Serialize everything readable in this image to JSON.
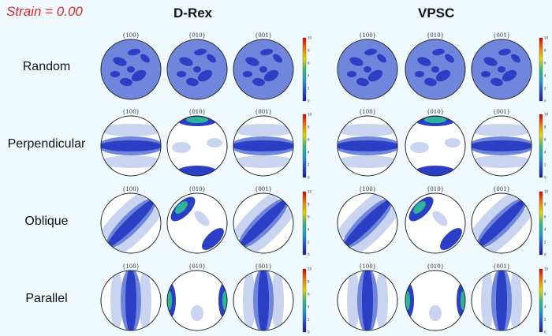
{
  "strain_label": "Strain = 0.00",
  "models": [
    "D-Rex",
    "VPSC"
  ],
  "rows": [
    "Random",
    "Perpendicular",
    "Oblique",
    "Parallel"
  ],
  "pole_figures": [
    "{100}",
    "{010}",
    "{001}"
  ],
  "colorbar": {
    "min": 0,
    "max": 10,
    "ticks": [
      "10",
      "8",
      "6",
      "4",
      "2",
      "0"
    ],
    "colors": [
      "#d40000",
      "#f07a00",
      "#e6d800",
      "#3cb878",
      "#1aa3c8",
      "#2850c8",
      "#1a1a8a"
    ]
  },
  "fabric_colors": {
    "background": "#ffffff",
    "low": "#c8d4f0",
    "mid": "#6f86dc",
    "high": "#2a3fc4",
    "peak": "#2fb49a"
  }
}
